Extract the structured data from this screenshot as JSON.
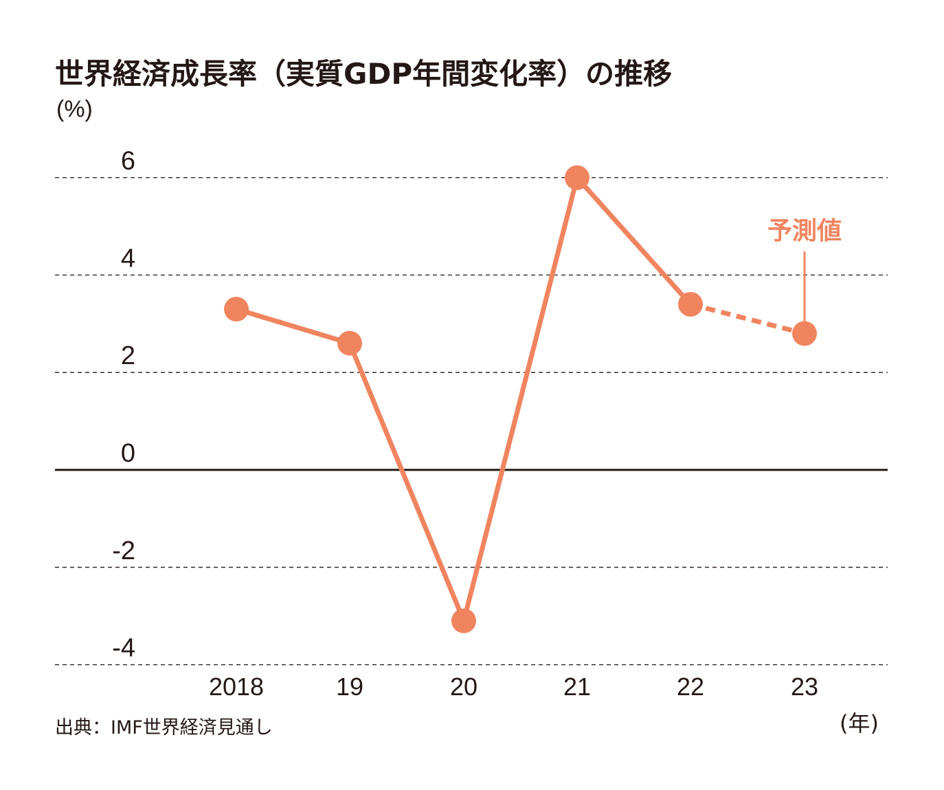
{
  "title": "世界経済成長率（実質GDP年間変化率）の推移",
  "unit_label": "(%)",
  "x_unit_label": "(年)",
  "source": "出典：IMF世界経済見通し",
  "forecast_label": "予測値",
  "colors": {
    "series": "#f0845f",
    "axis": "#231815",
    "grid": "#231815",
    "text": "#231815"
  },
  "chart_data": {
    "type": "line",
    "title": "世界経済成長率（実質GDP年間変化率）の推移",
    "xlabel": "(年)",
    "ylabel": "(%)",
    "categories": [
      "2018",
      "19",
      "20",
      "21",
      "22",
      "23"
    ],
    "series": [
      {
        "values": [
          3.3,
          2.6,
          -3.1,
          6.0,
          3.4,
          2.8
        ],
        "forecast_from_index": 4
      }
    ],
    "yticks": [
      "6",
      "4",
      "2",
      "0",
      "-2",
      "-4"
    ],
    "ylim": [
      -4,
      6
    ],
    "grid": true,
    "annotations": [
      {
        "text": "予測値",
        "target_index": 5
      }
    ]
  }
}
